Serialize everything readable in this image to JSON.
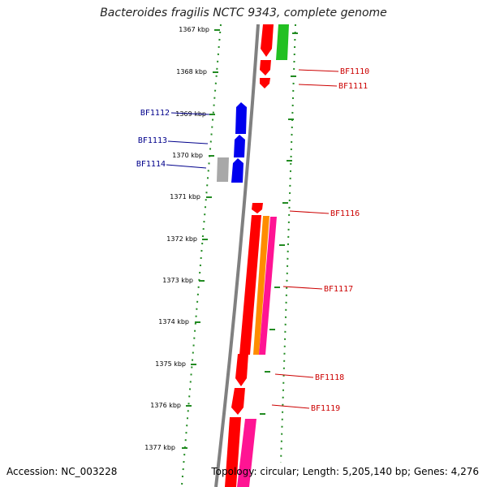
{
  "title": "Bacteroides fragilis NCTC 9343, complete genome",
  "footer": {
    "accession": "Accession: NC_003228",
    "summary": "Topology: circular; Length: 5,205,140 bp; Genes: 4,276"
  },
  "colors": {
    "forward": "#ff0000",
    "reverse": "#0000ee",
    "rna": "#ff1493",
    "other": "#ff8c00",
    "green_gene": "#22c022",
    "gray_gene": "#a8a8a8",
    "ticks": "#228b22",
    "backbone": "#808080"
  },
  "ticks": [
    {
      "label": "1367 kbp"
    },
    {
      "label": "1368 kbp"
    },
    {
      "label": "1369 kbp"
    },
    {
      "label": "1370 kbp"
    },
    {
      "label": "1371 kbp"
    },
    {
      "label": "1372 kbp"
    },
    {
      "label": "1373 kbp"
    },
    {
      "label": "1374 kbp"
    },
    {
      "label": "1375 kbp"
    },
    {
      "label": "1376 kbp"
    },
    {
      "label": "1377 kbp"
    }
  ],
  "gene_labels": [
    {
      "name": "BF1110",
      "strand": "forward"
    },
    {
      "name": "BF1111",
      "strand": "forward"
    },
    {
      "name": "BF1112",
      "strand": "reverse"
    },
    {
      "name": "BF1113",
      "strand": "reverse"
    },
    {
      "name": "BF1114",
      "strand": "reverse"
    },
    {
      "name": "BF1116",
      "strand": "forward"
    },
    {
      "name": "BF1117",
      "strand": "forward"
    },
    {
      "name": "BF1118",
      "strand": "forward"
    },
    {
      "name": "BF1119",
      "strand": "forward"
    }
  ]
}
